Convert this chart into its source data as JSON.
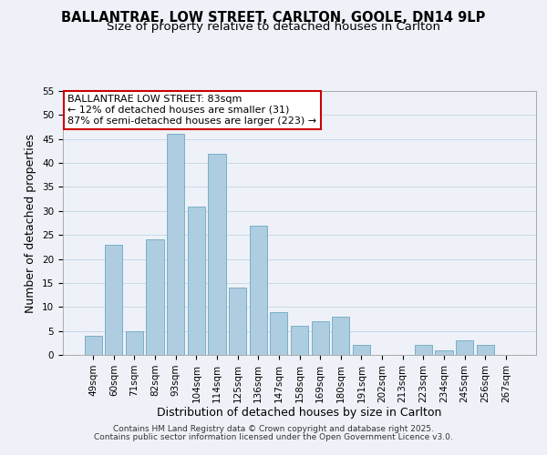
{
  "title1": "BALLANTRAE, LOW STREET, CARLTON, GOOLE, DN14 9LP",
  "title2": "Size of property relative to detached houses in Carlton",
  "xlabel": "Distribution of detached houses by size in Carlton",
  "ylabel": "Number of detached properties",
  "categories": [
    "49sqm",
    "60sqm",
    "71sqm",
    "82sqm",
    "93sqm",
    "104sqm",
    "114sqm",
    "125sqm",
    "136sqm",
    "147sqm",
    "158sqm",
    "169sqm",
    "180sqm",
    "191sqm",
    "202sqm",
    "213sqm",
    "223sqm",
    "234sqm",
    "245sqm",
    "256sqm",
    "267sqm"
  ],
  "values": [
    4,
    23,
    5,
    24,
    46,
    31,
    42,
    14,
    27,
    9,
    6,
    7,
    8,
    2,
    0,
    0,
    2,
    1,
    3,
    2,
    0
  ],
  "bar_color": "#aecde0",
  "bar_edge_color": "#7aafc8",
  "annotation_box_text": "BALLANTRAE LOW STREET: 83sqm\n← 12% of detached houses are smaller (31)\n87% of semi-detached houses are larger (223) →",
  "annotation_box_color": "white",
  "annotation_box_edge_color": "#cc0000",
  "grid_color": "#c8d8e8",
  "background_color": "#eef2f8",
  "ylim": [
    0,
    55
  ],
  "yticks": [
    0,
    5,
    10,
    15,
    20,
    25,
    30,
    35,
    40,
    45,
    50,
    55
  ],
  "footer1": "Contains HM Land Registry data © Crown copyright and database right 2025.",
  "footer2": "Contains public sector information licensed under the Open Government Licence v3.0.",
  "title_fontsize": 10.5,
  "subtitle_fontsize": 9.5,
  "axis_label_fontsize": 9,
  "tick_fontsize": 7.5,
  "annotation_fontsize": 8,
  "footer_fontsize": 6.5
}
